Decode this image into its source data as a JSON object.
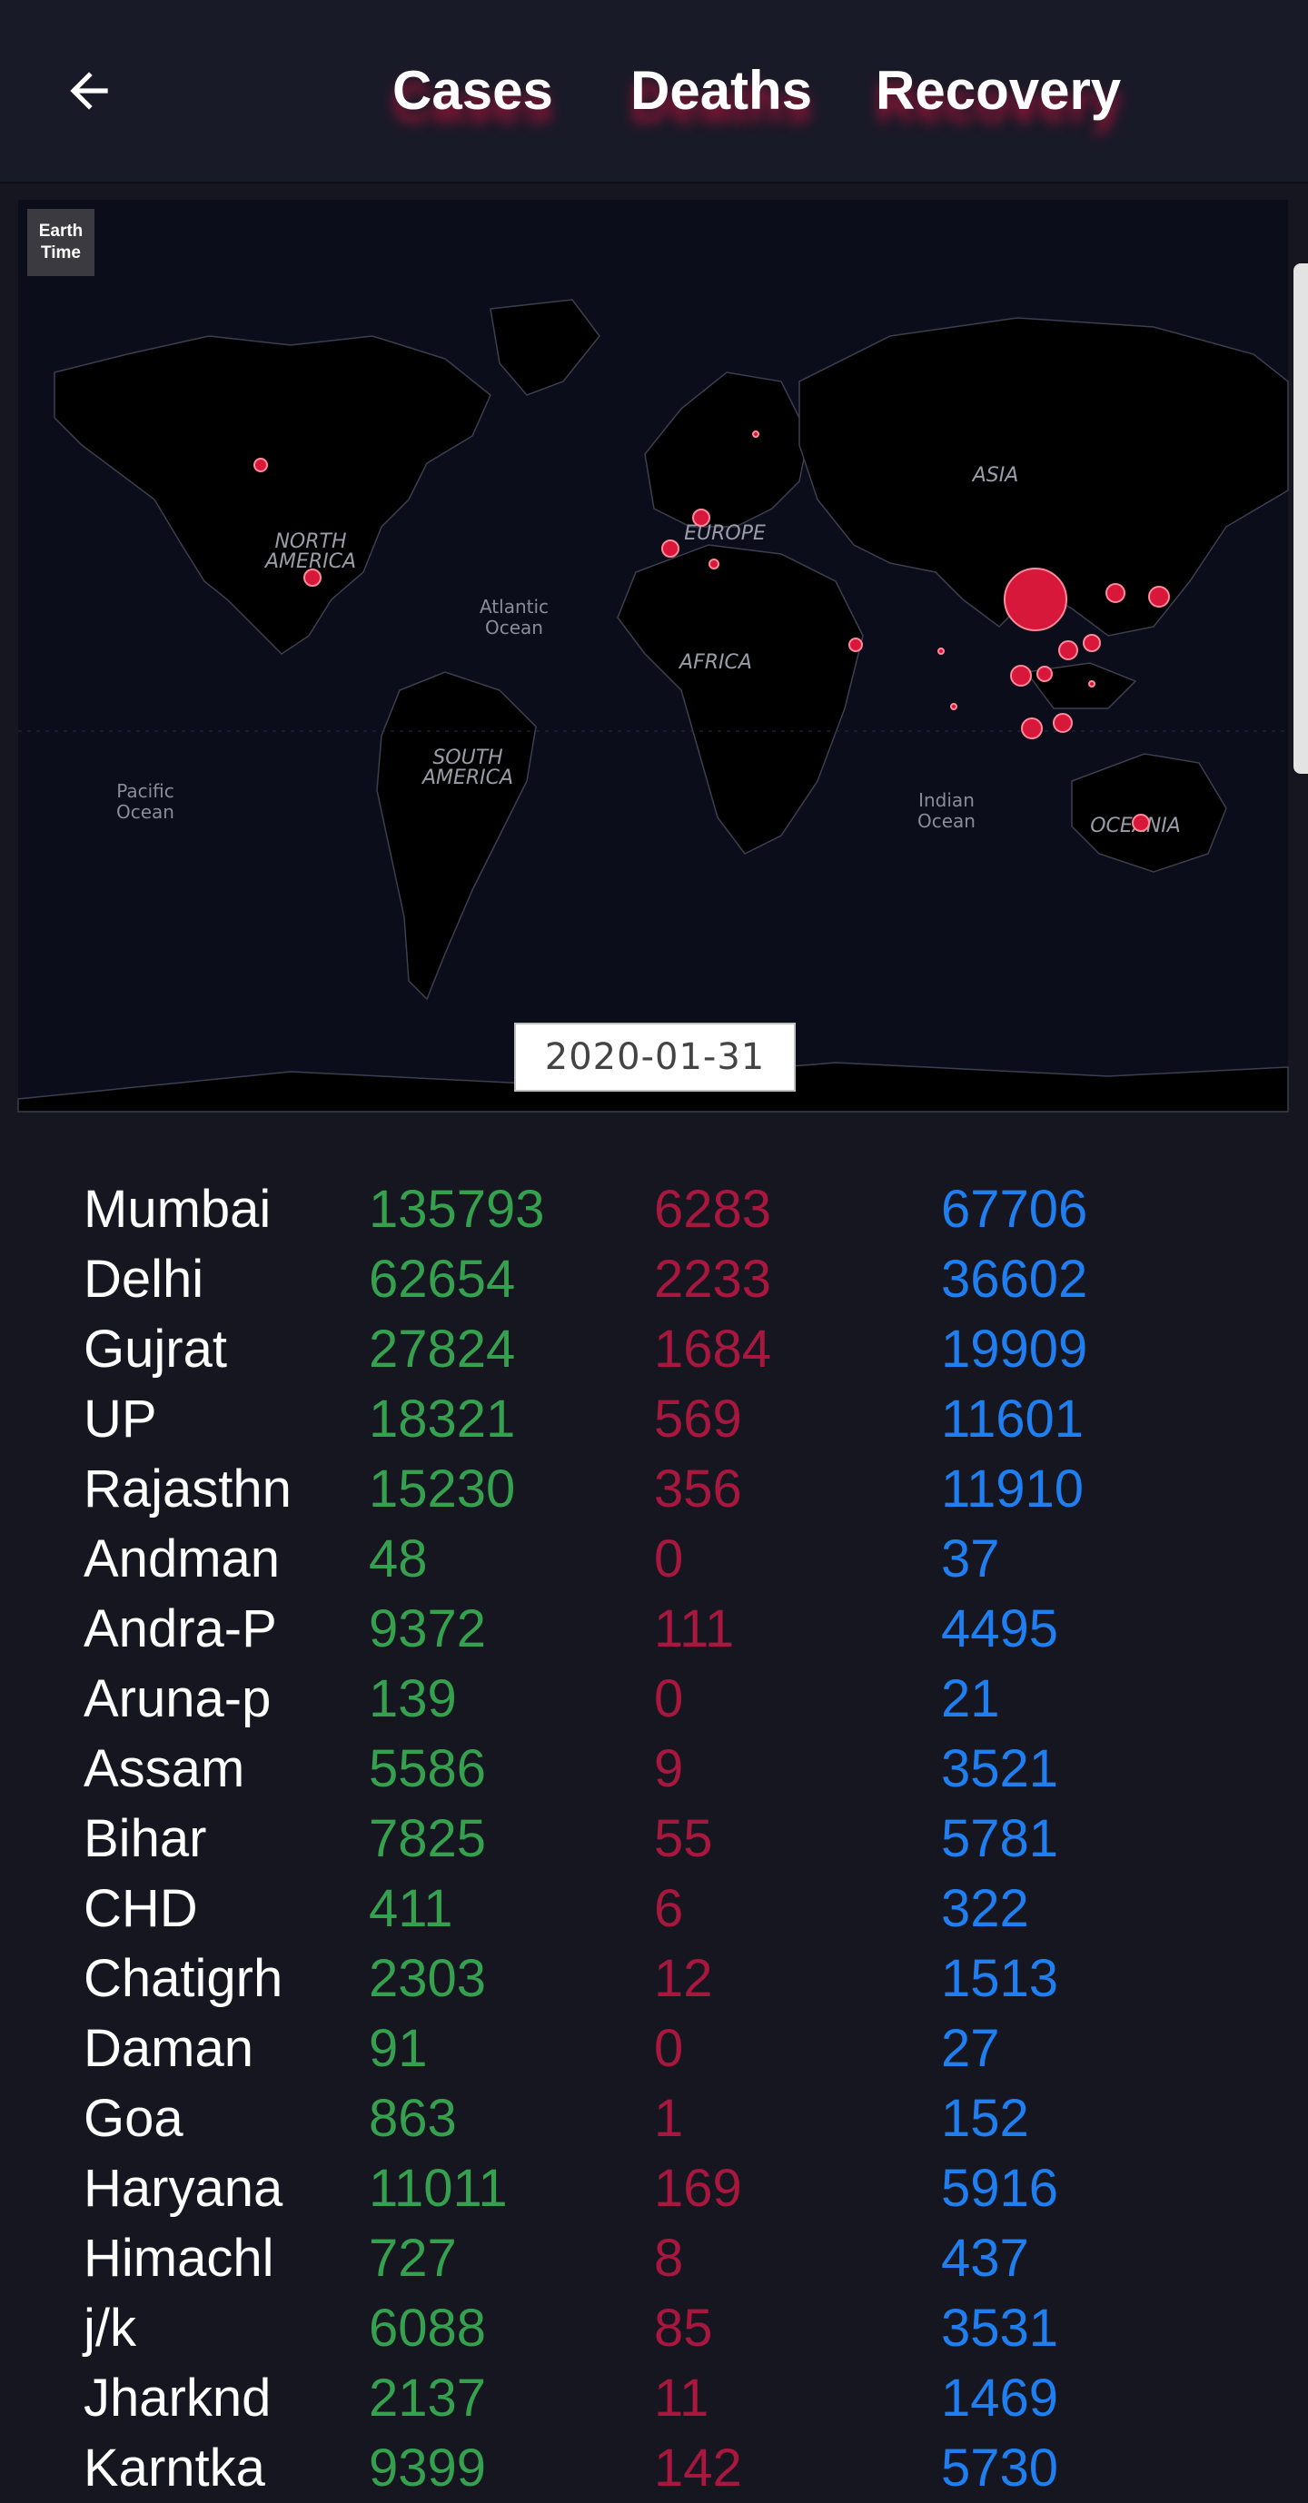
{
  "header": {
    "back_icon": "arrow-left-icon",
    "tabs": [
      {
        "label": "Cases"
      },
      {
        "label": "Deaths"
      },
      {
        "label": "Recovery"
      }
    ]
  },
  "map": {
    "logo_line1": "Earth",
    "logo_line2": "Time",
    "date": "2020-01-31",
    "labels": {
      "north_america": [
        "NORTH",
        "AMERICA"
      ],
      "south_america": [
        "SOUTH",
        "AMERICA"
      ],
      "europe": "EUROPE",
      "africa": "AFRICA",
      "asia": "ASIA",
      "oceania": "OCEANIA",
      "atlantic": [
        "Atlantic",
        "Ocean"
      ],
      "pacific": [
        "Pacific",
        "Ocean"
      ],
      "indian": [
        "Indian",
        "Ocean"
      ]
    }
  },
  "colors": {
    "background": "#161621",
    "header_bg": "#191a28",
    "cases": "#35a04d",
    "deaths": "#a8173d",
    "recovery": "#1f7ff0",
    "bubble": "#d8183a"
  },
  "rows": [
    {
      "name": "Mumbai",
      "cases": "135793",
      "deaths": "6283",
      "recovery": "67706"
    },
    {
      "name": "Delhi",
      "cases": "62654",
      "deaths": "2233",
      "recovery": "36602"
    },
    {
      "name": "Gujrat",
      "cases": "27824",
      "deaths": "1684",
      "recovery": "19909"
    },
    {
      "name": "UP",
      "cases": "18321",
      "deaths": "569",
      "recovery": "11601"
    },
    {
      "name": "Rajasthn",
      "cases": "15230",
      "deaths": "356",
      "recovery": "11910"
    },
    {
      "name": "Andman",
      "cases": "48",
      "deaths": "0",
      "recovery": "37"
    },
    {
      "name": "Andra-P",
      "cases": "9372",
      "deaths": "111",
      "recovery": "4495"
    },
    {
      "name": "Aruna-p",
      "cases": "139",
      "deaths": "0",
      "recovery": "21"
    },
    {
      "name": "Assam",
      "cases": "5586",
      "deaths": "9",
      "recovery": "3521"
    },
    {
      "name": "Bihar",
      "cases": "7825",
      "deaths": "55",
      "recovery": "5781"
    },
    {
      "name": "CHD",
      "cases": "411",
      "deaths": "6",
      "recovery": "322"
    },
    {
      "name": "Chatigrh",
      "cases": "2303",
      "deaths": "12",
      "recovery": "1513"
    },
    {
      "name": "Daman",
      "cases": "91",
      "deaths": "0",
      "recovery": "27"
    },
    {
      "name": "Goa",
      "cases": "863",
      "deaths": "1",
      "recovery": "152"
    },
    {
      "name": "Haryana",
      "cases": "11011",
      "deaths": "169",
      "recovery": "5916"
    },
    {
      "name": "Himachl",
      "cases": "727",
      "deaths": "8",
      "recovery": "437"
    },
    {
      "name": "j/k",
      "cases": "6088",
      "deaths": "85",
      "recovery": "3531"
    },
    {
      "name": "Jharknd",
      "cases": "2137",
      "deaths": "11",
      "recovery": "1469"
    },
    {
      "name": "Karntka",
      "cases": "9399",
      "deaths": "142",
      "recovery": "5730"
    }
  ]
}
